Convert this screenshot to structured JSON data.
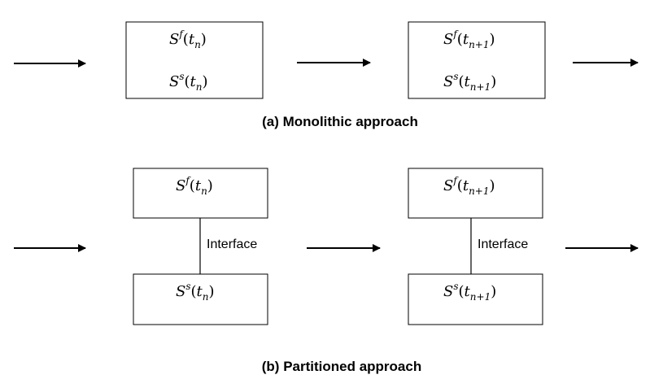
{
  "monolithic": {
    "caption": "(a) Monolithic approach",
    "box_n": {
      "fluid": {
        "base": "S",
        "sup": "f",
        "arg": "t",
        "sub": "n"
      },
      "solid": {
        "base": "S",
        "sup": "s",
        "arg": "t",
        "sub": "n"
      }
    },
    "box_n1": {
      "fluid": {
        "base": "S",
        "sup": "f",
        "arg": "t",
        "sub": "n+1"
      },
      "solid": {
        "base": "S",
        "sup": "s",
        "arg": "t",
        "sub": "n+1"
      }
    }
  },
  "partitioned": {
    "caption": "(b) Partitioned approach",
    "interface_label": "Interface",
    "step_n": {
      "fluid": {
        "base": "S",
        "sup": "f",
        "arg": "t",
        "sub": "n"
      },
      "solid": {
        "base": "S",
        "sup": "s",
        "arg": "t",
        "sub": "n"
      }
    },
    "step_n1": {
      "fluid": {
        "base": "S",
        "sup": "f",
        "arg": "t",
        "sub": "n+1"
      },
      "solid": {
        "base": "S",
        "sup": "s",
        "arg": "t",
        "sub": "n+1"
      }
    }
  }
}
